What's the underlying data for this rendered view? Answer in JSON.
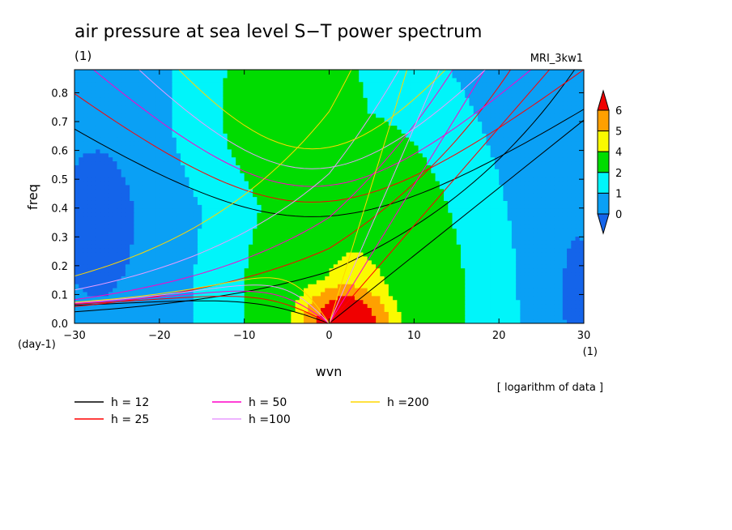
{
  "chart_data": {
    "type": "heatmap",
    "title": "air pressure at sea level S−T power spectrum",
    "subtitle": "(1)",
    "model_label": "MRI_3kw1",
    "xlabel": "wvn",
    "ylabel": "freq",
    "x_unit": "(1)",
    "y_unit": "(day-1)",
    "note": "[ logarithm of data ]",
    "xlim": [
      -30,
      30
    ],
    "ylim": [
      0,
      0.88
    ],
    "x_ticks": [
      -30,
      -20,
      -10,
      0,
      10,
      20,
      30
    ],
    "x_tick_labels": [
      "−30",
      "−20",
      "−10",
      "0",
      "10",
      "20",
      "30"
    ],
    "y_ticks": [
      0,
      0.1,
      0.2,
      0.3,
      0.4,
      0.5,
      0.6,
      0.7,
      0.8
    ],
    "y_tick_labels": [
      "0.0",
      "0.1",
      "0.2",
      "0.3",
      "0.4",
      "0.5",
      "0.6",
      "0.7",
      "0.8"
    ],
    "colorbar": {
      "levels": [
        0,
        1,
        2,
        4,
        5,
        6
      ],
      "level_labels": [
        "0",
        "1",
        "2",
        "4",
        "5",
        "6"
      ],
      "colors": [
        "#1464ea",
        "#0aa0f5",
        "#00f5fa",
        "#00dc00",
        "#fafa00",
        "#ffa000",
        "#f00000"
      ]
    },
    "field": {
      "description_levels": "log10 power, peak near wvn 2, freq 0",
      "peak": {
        "x": 2,
        "y": 0.0,
        "value": 6.5
      }
    },
    "dispersion_curves": [
      {
        "name": "h = 12",
        "color": "#000000"
      },
      {
        "name": "h = 25",
        "color": "#ff0000"
      },
      {
        "name": "h = 50",
        "color": "#ff00c8"
      },
      {
        "name": "h =100",
        "color": "#e89bff"
      },
      {
        "name": "h =200",
        "color": "#ffd700"
      }
    ]
  }
}
